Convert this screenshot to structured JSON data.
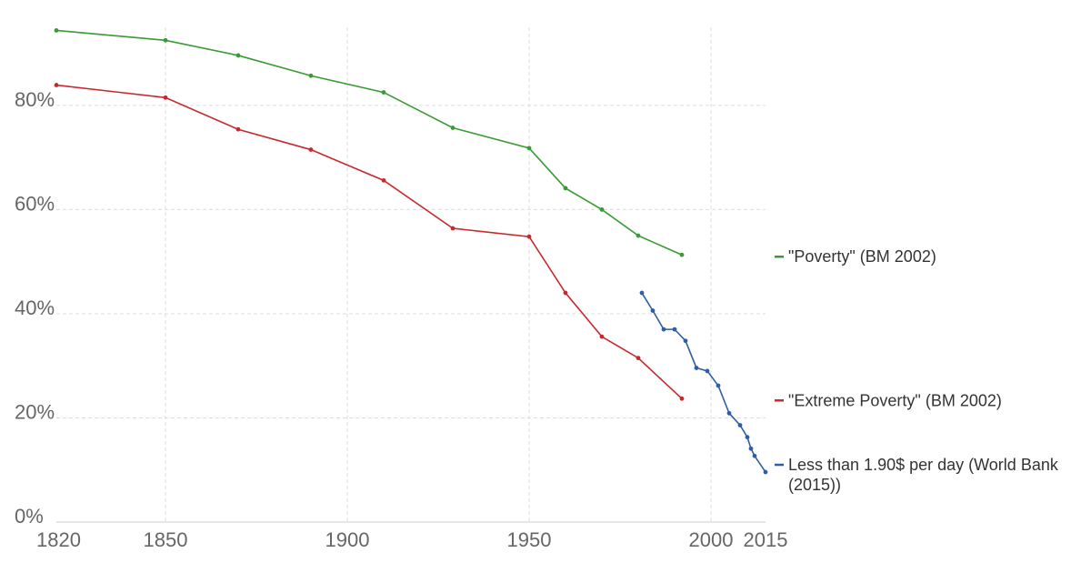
{
  "chart_data": {
    "type": "line",
    "title": "",
    "xlabel": "",
    "ylabel": "",
    "xlim": [
      1820,
      2015
    ],
    "ylim": [
      0,
      95
    ],
    "x_ticks": [
      1820,
      1850,
      1900,
      1950,
      2000,
      2015
    ],
    "x_tick_labels": [
      "1820",
      "1850",
      "1900",
      "1950",
      "2000",
      "2015"
    ],
    "y_ticks": [
      0,
      20,
      40,
      60,
      80
    ],
    "y_tick_labels": [
      "0%",
      "20%",
      "40%",
      "60%",
      "80%"
    ],
    "grid": true,
    "legend_position": "right",
    "series": [
      {
        "name": "\"Poverty\" (BM 2002)",
        "color": "#3a9a35",
        "x": [
          1820,
          1850,
          1870,
          1890,
          1910,
          1929,
          1950,
          1960,
          1970,
          1980,
          1992
        ],
        "y": [
          94.4,
          92.5,
          89.6,
          85.7,
          82.5,
          75.7,
          71.8,
          64.1,
          60.0,
          55.0,
          51.3
        ]
      },
      {
        "name": "\"Extreme Poverty\" (BM 2002)",
        "color": "#c8282d",
        "x": [
          1820,
          1850,
          1870,
          1890,
          1910,
          1929,
          1950,
          1960,
          1970,
          1980,
          1992
        ],
        "y": [
          83.9,
          81.5,
          75.4,
          71.5,
          65.6,
          56.4,
          54.8,
          44.0,
          35.6,
          31.5,
          23.7
        ]
      },
      {
        "name": "Less than 1.90$ per day (World Bank (2015))",
        "legend_lines": [
          "Less than 1.90$ per day (World Bank",
          "(2015))"
        ],
        "color": "#2e5ea6",
        "x": [
          1981,
          1984,
          1987,
          1990,
          1993,
          1996,
          1999,
          2002,
          2005,
          2008,
          2010,
          2011,
          2012,
          2015
        ],
        "y": [
          44.0,
          40.6,
          37.0,
          37.0,
          34.8,
          29.6,
          29.0,
          26.2,
          20.9,
          18.6,
          16.3,
          14.1,
          12.7,
          9.6
        ]
      }
    ]
  }
}
